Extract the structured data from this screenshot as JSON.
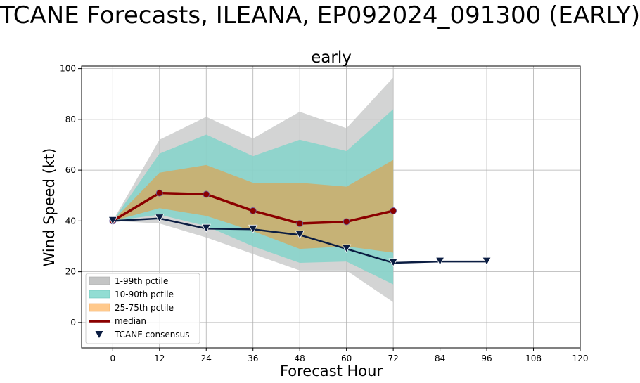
{
  "suptitle": "TCANE Forecasts, ILEANA, EP092024_091300 (EARLY)",
  "colors": {
    "band_1_99": "#c4c5c5",
    "band_10_90": "#7fd3c9",
    "band_25_75": "#c9b071",
    "median": "#8b0000",
    "consensus": "#0b1d42",
    "grid": "#b0b0b0"
  },
  "chart_data": {
    "type": "line",
    "title": "early",
    "xlabel": "Forecast Hour",
    "ylabel": "Wind Speed (kt)",
    "xlim": [
      -8,
      120
    ],
    "ylim": [
      -10,
      101
    ],
    "xticks": [
      0,
      12,
      24,
      36,
      48,
      60,
      72,
      84,
      96,
      108,
      120
    ],
    "yticks": [
      0,
      20,
      40,
      60,
      80,
      100
    ],
    "grid": true,
    "legend_position": "lower-left",
    "bands": [
      {
        "name": "1-99th pctile",
        "x": [
          0,
          12,
          24,
          36,
          48,
          60,
          72
        ],
        "lower": [
          40,
          39,
          33.5,
          27,
          20.5,
          20.5,
          8
        ],
        "upper": [
          40,
          72,
          81,
          72.5,
          83,
          76.5,
          96.5
        ]
      },
      {
        "name": "10-90th pctile",
        "x": [
          0,
          12,
          24,
          36,
          48,
          60,
          72
        ],
        "lower": [
          40,
          42.5,
          38,
          30,
          23.5,
          24,
          15
        ],
        "upper": [
          40,
          66.5,
          74,
          65.5,
          72,
          67.5,
          84
        ]
      },
      {
        "name": "25-75th pctile",
        "x": [
          0,
          12,
          24,
          36,
          48,
          60,
          72
        ],
        "lower": [
          40,
          45,
          42,
          36,
          29,
          30,
          27.5
        ],
        "upper": [
          40,
          59,
          62,
          55,
          55,
          53.5,
          64
        ]
      }
    ],
    "series": [
      {
        "name": "median",
        "x": [
          0,
          12,
          24,
          36,
          48,
          60,
          72
        ],
        "values": [
          40,
          51,
          50.5,
          44,
          39,
          39.7,
          44
        ]
      },
      {
        "name": "TCANE consensus",
        "x": [
          0,
          12,
          24,
          36,
          48,
          60,
          72,
          84,
          96
        ],
        "values": [
          40,
          41,
          37,
          36.7,
          34.5,
          29,
          23.5,
          24,
          24
        ]
      }
    ]
  }
}
